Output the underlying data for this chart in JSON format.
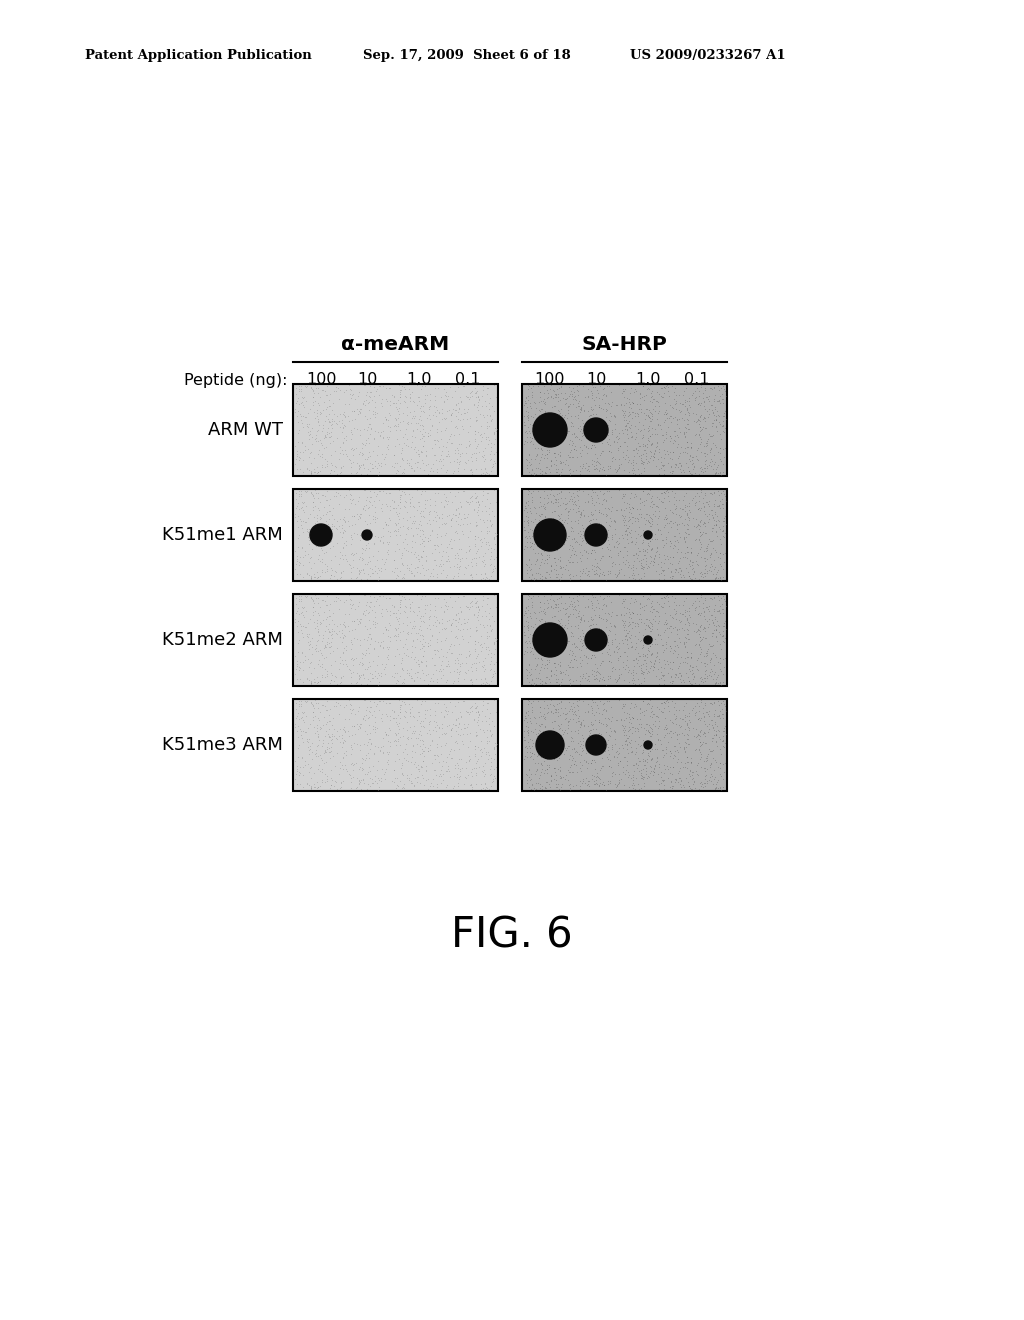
{
  "header_left": "Patent Application Publication",
  "header_mid": "Sep. 17, 2009  Sheet 6 of 18",
  "header_right": "US 2009/0233267 A1",
  "col_header_alpha": "α-meARM",
  "col_header_sa": "SA-HRP",
  "peptide_label": "Peptide (ng):",
  "conc_labels": [
    "100",
    "10",
    "1.0",
    "0.1"
  ],
  "row_labels": [
    "ARM WT",
    "K51me1 ARM",
    "K51me2 ARM",
    "K51me3 ARM"
  ],
  "figure_label": "FIG. 6",
  "bg_alpha": "#d2d2d2",
  "bg_sa": "#b0b0b0",
  "dot_color": "#0d0d0d",
  "dots_alpha": [
    [],
    [
      {
        "col": 0,
        "r": 11
      },
      {
        "col": 1,
        "r": 5
      }
    ],
    [],
    []
  ],
  "dots_sa": [
    [
      {
        "col": 0,
        "r": 17
      },
      {
        "col": 1,
        "r": 12
      }
    ],
    [
      {
        "col": 0,
        "r": 16
      },
      {
        "col": 1,
        "r": 11
      },
      {
        "col": 2,
        "r": 4
      }
    ],
    [
      {
        "col": 0,
        "r": 17
      },
      {
        "col": 1,
        "r": 11
      },
      {
        "col": 2,
        "r": 4
      }
    ],
    [
      {
        "col": 0,
        "r": 14
      },
      {
        "col": 1,
        "r": 10
      },
      {
        "col": 2,
        "r": 4
      }
    ]
  ]
}
